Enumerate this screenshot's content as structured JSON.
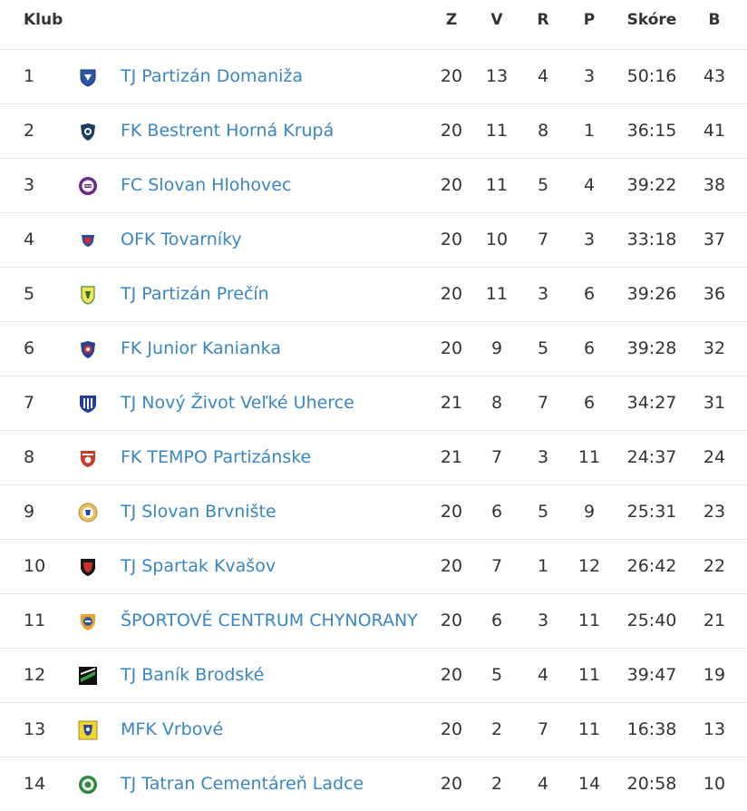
{
  "header": {
    "klub": "Klub",
    "z": "Z",
    "v": "V",
    "r": "R",
    "p": "P",
    "skore": "Skóre",
    "b": "B"
  },
  "rows": [
    {
      "rank": "1",
      "name": "TJ Partizán Domaniža",
      "z": "20",
      "v": "13",
      "r": "4",
      "p": "3",
      "skore": "50:16",
      "b": "43",
      "logo": "crest-blue-icon"
    },
    {
      "rank": "2",
      "name": "FK Bestrent Horná Krupá",
      "z": "20",
      "v": "11",
      "r": "8",
      "p": "1",
      "skore": "36:15",
      "b": "41",
      "logo": "crest-navy-icon"
    },
    {
      "rank": "3",
      "name": "FC Slovan Hlohovec",
      "z": "20",
      "v": "11",
      "r": "5",
      "p": "4",
      "skore": "39:22",
      "b": "38",
      "logo": "crest-purple-circle-icon"
    },
    {
      "rank": "4",
      "name": "OFK Tovarníky",
      "z": "20",
      "v": "10",
      "r": "7",
      "p": "3",
      "skore": "33:18",
      "b": "37",
      "logo": "crest-red-blue-icon"
    },
    {
      "rank": "5",
      "name": "TJ Partizán Prečín",
      "z": "20",
      "v": "11",
      "r": "3",
      "p": "6",
      "skore": "39:26",
      "b": "36",
      "logo": "crest-yellow-green-icon"
    },
    {
      "rank": "6",
      "name": "FK Junior Kanianka",
      "z": "20",
      "v": "9",
      "r": "5",
      "p": "6",
      "skore": "39:28",
      "b": "32",
      "logo": "crest-blue-red-icon"
    },
    {
      "rank": "7",
      "name": "TJ Nový Život Veľké Uherce",
      "z": "21",
      "v": "8",
      "r": "7",
      "p": "6",
      "skore": "34:27",
      "b": "31",
      "logo": "crest-blue-stripes-icon"
    },
    {
      "rank": "8",
      "name": "FK TEMPO Partizánske",
      "z": "21",
      "v": "7",
      "r": "3",
      "p": "11",
      "skore": "24:37",
      "b": "24",
      "logo": "crest-red-icon"
    },
    {
      "rank": "9",
      "name": "TJ Slovan Brvnište",
      "z": "20",
      "v": "6",
      "r": "5",
      "p": "9",
      "skore": "25:31",
      "b": "23",
      "logo": "crest-gold-circle-icon"
    },
    {
      "rank": "10",
      "name": "TJ Spartak Kvašov",
      "z": "20",
      "v": "7",
      "r": "1",
      "p": "12",
      "skore": "26:42",
      "b": "22",
      "logo": "crest-black-red-icon"
    },
    {
      "rank": "11",
      "name": "ŠPORTOVÉ CENTRUM CHYNORANY",
      "z": "20",
      "v": "6",
      "r": "3",
      "p": "11",
      "skore": "25:40",
      "b": "21",
      "logo": "crest-orange-blue-icon"
    },
    {
      "rank": "12",
      "name": "TJ Baník Brodské",
      "z": "20",
      "v": "5",
      "r": "4",
      "p": "11",
      "skore": "39:47",
      "b": "19",
      "logo": "crest-black-green-icon"
    },
    {
      "rank": "13",
      "name": "MFK Vrbové",
      "z": "20",
      "v": "2",
      "r": "7",
      "p": "11",
      "skore": "16:38",
      "b": "13",
      "logo": "crest-yellow-blue-icon"
    },
    {
      "rank": "14",
      "name": "TJ Tatran Cementáreň Ladce",
      "z": "20",
      "v": "2",
      "r": "4",
      "p": "14",
      "skore": "20:58",
      "b": "10",
      "logo": "crest-green-circle-icon"
    }
  ]
}
